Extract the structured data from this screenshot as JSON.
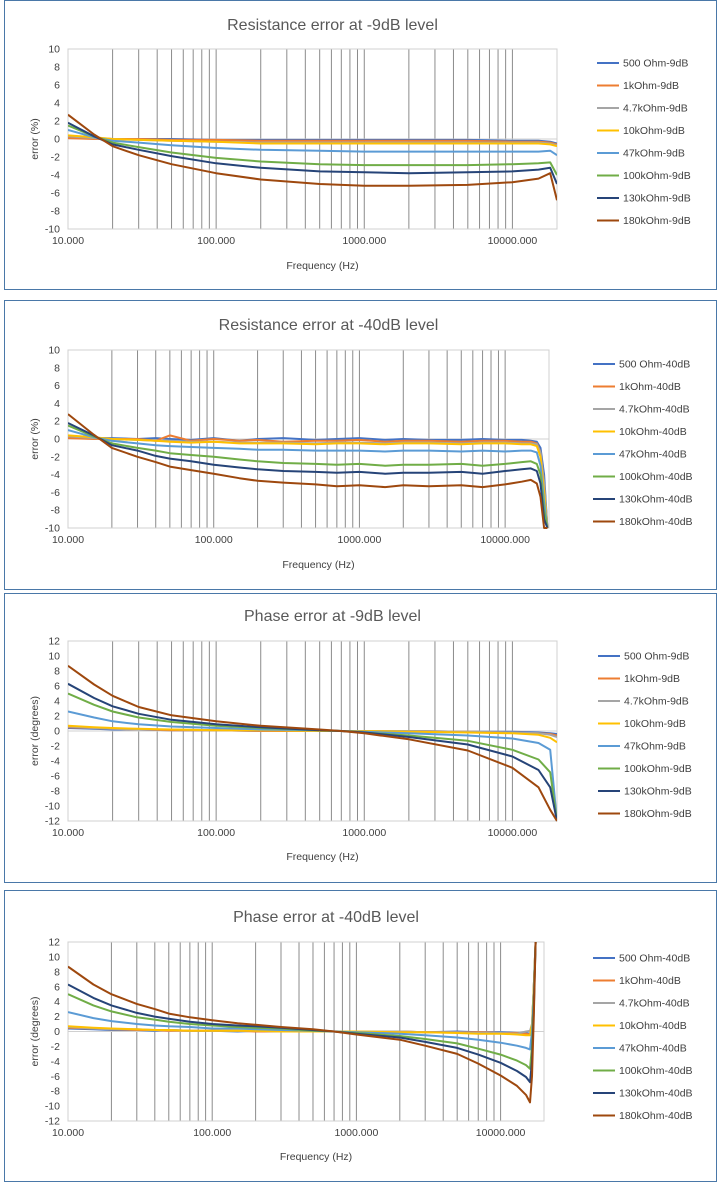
{
  "colors": {
    "500 Ohm": "#4472c4",
    "1kOhm": "#ed7d31",
    "4.7kOhm": "#a5a5a5",
    "10kOhm": "#ffc000",
    "47kOhm": "#5b9bd5",
    "100kOhm": "#70ad47",
    "130kOhm": "#264478",
    "180kOhm": "#9e480e"
  },
  "chart_data": [
    {
      "type": "line",
      "title": "Resistance error at -9dB level",
      "xlabel": "Frequency (Hz)",
      "ylabel": "error (%)",
      "x_scale": "log",
      "xlim": [
        10,
        20000
      ],
      "ylim": [
        -10,
        10
      ],
      "y_ticks": [
        10,
        8,
        6,
        4,
        2,
        0,
        -2,
        -4,
        -6,
        -8,
        -10
      ],
      "x_ticks": [
        "10.000",
        "100.000",
        "1000.000",
        "10000.000"
      ],
      "grid": "vertical",
      "legend": "right",
      "x": [
        10,
        15,
        20,
        30,
        50,
        100,
        200,
        500,
        1000,
        2000,
        5000,
        10000,
        15000,
        18000,
        20000
      ],
      "series": [
        {
          "name": "500 Ohm-9dB",
          "values": [
            0.2,
            0.1,
            0.0,
            0.0,
            0.0,
            -0.1,
            -0.1,
            -0.1,
            -0.1,
            -0.1,
            -0.1,
            -0.2,
            -0.2,
            -0.3,
            -0.5
          ]
        },
        {
          "name": "1kOhm-9dB",
          "values": [
            0.1,
            0.0,
            0.0,
            0.0,
            -0.1,
            -0.1,
            -0.2,
            -0.2,
            -0.2,
            -0.2,
            -0.2,
            -0.3,
            -0.3,
            -0.4,
            -0.6
          ]
        },
        {
          "name": "4.7kOhm-9dB",
          "values": [
            0.3,
            0.1,
            0.0,
            -0.1,
            -0.2,
            -0.3,
            -0.4,
            -0.4,
            -0.4,
            -0.4,
            -0.4,
            -0.4,
            -0.4,
            -0.5,
            -0.7
          ]
        },
        {
          "name": "10kOhm-9dB",
          "values": [
            0.4,
            0.2,
            0.0,
            -0.1,
            -0.2,
            -0.3,
            -0.5,
            -0.5,
            -0.5,
            -0.5,
            -0.5,
            -0.5,
            -0.5,
            -0.6,
            -0.8
          ]
        },
        {
          "name": "47kOhm-9dB",
          "values": [
            1.0,
            0.2,
            -0.2,
            -0.4,
            -0.7,
            -1.0,
            -1.2,
            -1.3,
            -1.4,
            -1.4,
            -1.4,
            -1.4,
            -1.4,
            -1.3,
            -1.8
          ]
        },
        {
          "name": "100kOhm-9dB",
          "values": [
            1.5,
            0.3,
            -0.4,
            -0.9,
            -1.5,
            -2.1,
            -2.5,
            -2.8,
            -2.9,
            -2.9,
            -2.9,
            -2.8,
            -2.7,
            -2.6,
            -4.0
          ]
        },
        {
          "name": "130kOhm-9dB",
          "values": [
            1.8,
            0.3,
            -0.6,
            -1.2,
            -1.9,
            -2.7,
            -3.2,
            -3.6,
            -3.7,
            -3.8,
            -3.7,
            -3.6,
            -3.4,
            -3.2,
            -5.0
          ]
        },
        {
          "name": "180kOhm-9dB",
          "values": [
            2.7,
            0.5,
            -0.8,
            -1.8,
            -2.8,
            -3.8,
            -4.5,
            -5.0,
            -5.2,
            -5.2,
            -5.1,
            -4.8,
            -4.4,
            -3.8,
            -6.8
          ]
        }
      ]
    },
    {
      "type": "line",
      "title": "Resistance error at -40dB level",
      "xlabel": "Frequency (Hz)",
      "ylabel": "error (%)",
      "x_scale": "log",
      "xlim": [
        10,
        20000
      ],
      "ylim": [
        -10,
        10
      ],
      "y_ticks": [
        10,
        8,
        6,
        4,
        2,
        0,
        -2,
        -4,
        -6,
        -8,
        -10
      ],
      "x_ticks": [
        "10.000",
        "100.000",
        "1000.000",
        "10000.000"
      ],
      "grid": "vertical",
      "legend": "right",
      "x": [
        10,
        15,
        20,
        30,
        40,
        50,
        70,
        100,
        150,
        200,
        300,
        500,
        700,
        1000,
        1500,
        2000,
        3000,
        5000,
        7000,
        10000,
        13000,
        15000,
        16500,
        17500,
        18500,
        19500
      ],
      "series": [
        {
          "name": "500 Ohm-40dB",
          "values": [
            0.3,
            0.1,
            0.1,
            0.0,
            0.1,
            0.0,
            -0.1,
            0.1,
            -0.2,
            0.0,
            0.1,
            -0.1,
            0.0,
            0.1,
            -0.1,
            0.0,
            -0.1,
            -0.1,
            0.0,
            -0.1,
            -0.1,
            -0.2,
            -0.3,
            -1.0,
            -4.0,
            -10.0
          ]
        },
        {
          "name": "1kOhm-40dB",
          "values": [
            0.1,
            0.0,
            0.0,
            0.0,
            -0.2,
            0.4,
            -0.2,
            0.0,
            -0.2,
            -0.1,
            -0.3,
            -0.2,
            -0.2,
            -0.1,
            -0.3,
            -0.2,
            -0.2,
            -0.3,
            -0.2,
            -0.2,
            -0.3,
            -0.3,
            -0.5,
            -1.5,
            -5.0,
            -10.0
          ]
        },
        {
          "name": "4.7kOhm-40dB",
          "values": [
            0.3,
            0.1,
            0.0,
            -0.1,
            -0.2,
            -0.2,
            -0.3,
            -0.3,
            -0.4,
            -0.4,
            -0.4,
            -0.5,
            -0.4,
            -0.4,
            -0.5,
            -0.4,
            -0.4,
            -0.5,
            -0.4,
            -0.4,
            -0.5,
            -0.5,
            -0.6,
            -1.5,
            -5.0,
            -10.0
          ]
        },
        {
          "name": "10kOhm-40dB",
          "values": [
            0.4,
            0.2,
            0.0,
            -0.1,
            -0.2,
            -0.3,
            -0.4,
            -0.3,
            -0.5,
            -0.5,
            -0.5,
            -0.6,
            -0.5,
            -0.5,
            -0.6,
            -0.5,
            -0.5,
            -0.6,
            -0.5,
            -0.5,
            -0.6,
            -0.6,
            -0.8,
            -2.0,
            -6.0,
            -10.0
          ]
        },
        {
          "name": "47kOhm-40dB",
          "values": [
            1.0,
            0.2,
            -0.2,
            -0.5,
            -0.7,
            -0.8,
            -0.9,
            -1.0,
            -1.1,
            -1.2,
            -1.2,
            -1.3,
            -1.3,
            -1.3,
            -1.4,
            -1.3,
            -1.3,
            -1.4,
            -1.3,
            -1.4,
            -1.3,
            -1.3,
            -1.5,
            -3.0,
            -7.0,
            -10.0
          ]
        },
        {
          "name": "100kOhm-40dB",
          "values": [
            1.5,
            0.3,
            -0.5,
            -1.0,
            -1.3,
            -1.6,
            -1.8,
            -2.0,
            -2.3,
            -2.5,
            -2.7,
            -2.8,
            -2.9,
            -2.8,
            -3.0,
            -2.9,
            -2.9,
            -2.8,
            -3.0,
            -2.8,
            -2.6,
            -2.5,
            -2.8,
            -4.0,
            -8.0,
            -10.0
          ]
        },
        {
          "name": "130kOhm-40dB",
          "values": [
            1.8,
            0.4,
            -0.7,
            -1.3,
            -1.9,
            -2.2,
            -2.5,
            -2.9,
            -3.2,
            -3.4,
            -3.6,
            -3.7,
            -3.8,
            -3.7,
            -3.9,
            -3.8,
            -3.8,
            -3.7,
            -3.9,
            -3.6,
            -3.4,
            -3.3,
            -3.6,
            -5.0,
            -9.0,
            -10.0
          ]
        },
        {
          "name": "180kOhm-40dB",
          "values": [
            2.8,
            0.5,
            -1.0,
            -2.0,
            -2.6,
            -3.1,
            -3.5,
            -3.9,
            -4.4,
            -4.7,
            -4.9,
            -5.1,
            -5.3,
            -5.2,
            -5.4,
            -5.2,
            -5.3,
            -5.2,
            -5.4,
            -5.1,
            -4.8,
            -4.6,
            -5.0,
            -6.5,
            -10.0,
            -10.0
          ]
        }
      ]
    },
    {
      "type": "line",
      "title": "Phase error at -9dB level",
      "xlabel": "Frequency (Hz)",
      "ylabel": "error (degrees)",
      "x_scale": "log",
      "xlim": [
        10,
        20000
      ],
      "ylim": [
        -12,
        12
      ],
      "y_ticks": [
        12,
        10,
        8,
        6,
        4,
        2,
        0,
        -2,
        -4,
        -6,
        -8,
        -10,
        -12
      ],
      "x_ticks": [
        "10.000",
        "100.000",
        "1000.000",
        "10000.000"
      ],
      "grid": "vertical",
      "legend": "right",
      "x": [
        10,
        15,
        20,
        30,
        50,
        100,
        200,
        500,
        700,
        1000,
        2000,
        5000,
        10000,
        15000,
        18000,
        20000
      ],
      "series": [
        {
          "name": "500 Ohm-9dB",
          "values": [
            0.4,
            0.3,
            0.2,
            0.2,
            0.1,
            0.1,
            0.0,
            0.0,
            0.0,
            0.0,
            0.0,
            -0.1,
            -0.1,
            -0.2,
            -0.3,
            -0.4
          ]
        },
        {
          "name": "1kOhm-9dB",
          "values": [
            0.5,
            0.4,
            0.3,
            0.2,
            0.1,
            0.1,
            0.0,
            0.0,
            0.0,
            0.0,
            0.0,
            -0.1,
            -0.2,
            -0.3,
            -0.4,
            -0.6
          ]
        },
        {
          "name": "4.7kOhm-9dB",
          "values": [
            0.6,
            0.4,
            0.3,
            0.2,
            0.2,
            0.1,
            0.1,
            0.0,
            0.0,
            0.0,
            0.0,
            -0.1,
            -0.2,
            -0.3,
            -0.5,
            -0.8
          ]
        },
        {
          "name": "10kOhm-9dB",
          "values": [
            0.7,
            0.5,
            0.4,
            0.3,
            0.2,
            0.1,
            0.1,
            0.0,
            0.0,
            0.0,
            -0.1,
            -0.2,
            -0.3,
            -0.5,
            -0.9,
            -1.5
          ]
        },
        {
          "name": "47kOhm-9dB",
          "values": [
            2.6,
            1.8,
            1.3,
            0.9,
            0.6,
            0.4,
            0.2,
            0.1,
            0.0,
            -0.1,
            -0.3,
            -0.6,
            -1.0,
            -1.6,
            -2.5,
            -12.0
          ]
        },
        {
          "name": "100kOhm-9dB",
          "values": [
            5.0,
            3.5,
            2.6,
            1.8,
            1.2,
            0.7,
            0.4,
            0.1,
            0.0,
            -0.2,
            -0.6,
            -1.3,
            -2.5,
            -3.8,
            -5.5,
            -12.0
          ]
        },
        {
          "name": "130kOhm-9dB",
          "values": [
            6.3,
            4.4,
            3.3,
            2.3,
            1.5,
            0.9,
            0.5,
            0.1,
            0.0,
            -0.2,
            -0.8,
            -1.8,
            -3.4,
            -5.2,
            -7.5,
            -12.0
          ]
        },
        {
          "name": "180kOhm-9dB",
          "values": [
            8.7,
            6.2,
            4.7,
            3.2,
            2.1,
            1.3,
            0.7,
            0.2,
            0.0,
            -0.3,
            -1.1,
            -2.6,
            -4.9,
            -7.5,
            -10.5,
            -12.0
          ]
        }
      ]
    },
    {
      "type": "line",
      "title": "Phase error at -40dB level",
      "xlabel": "Frequency (Hz)",
      "ylabel": "error (degrees)",
      "x_scale": "log",
      "xlim": [
        10,
        20000
      ],
      "ylim": [
        -12,
        12
      ],
      "y_ticks": [
        12,
        10,
        8,
        6,
        4,
        2,
        0,
        -2,
        -4,
        -6,
        -8,
        -10,
        -12
      ],
      "x_ticks": [
        "10.000",
        "100.000",
        "1000.000",
        "10000.000"
      ],
      "grid": "vertical",
      "legend": "right",
      "x": [
        10,
        15,
        20,
        30,
        40,
        50,
        70,
        100,
        150,
        200,
        300,
        500,
        700,
        1000,
        2000,
        3000,
        5000,
        7000,
        10000,
        13000,
        15000,
        16000,
        16500,
        17000,
        17500
      ],
      "series": [
        {
          "name": "500 Ohm-40dB",
          "values": [
            0.4,
            0.3,
            0.2,
            0.2,
            0.1,
            0.2,
            0.1,
            0.1,
            0.0,
            0.1,
            0.0,
            0.0,
            0.0,
            0.0,
            0.0,
            -0.1,
            0.0,
            -0.1,
            -0.1,
            -0.2,
            -0.2,
            -0.3,
            0.5,
            6.0,
            12.0
          ]
        },
        {
          "name": "1kOhm-40dB",
          "values": [
            0.5,
            0.4,
            0.3,
            0.2,
            0.2,
            0.1,
            0.1,
            0.1,
            0.1,
            0.0,
            0.0,
            0.0,
            0.0,
            0.0,
            0.0,
            -0.1,
            -0.1,
            -0.1,
            -0.2,
            -0.2,
            -0.3,
            -0.4,
            0.5,
            6.0,
            12.0
          ]
        },
        {
          "name": "4.7kOhm-40dB",
          "values": [
            0.6,
            0.4,
            0.3,
            0.3,
            0.2,
            0.2,
            0.1,
            0.1,
            0.1,
            0.1,
            0.0,
            0.0,
            0.0,
            0.0,
            0.0,
            -0.1,
            -0.1,
            -0.2,
            -0.2,
            -0.3,
            0.0,
            0.1,
            1.0,
            6.0,
            12.0
          ]
        },
        {
          "name": "10kOhm-40dB",
          "values": [
            0.7,
            0.5,
            0.4,
            0.3,
            0.2,
            0.2,
            0.1,
            0.1,
            0.1,
            0.1,
            0.0,
            0.0,
            0.0,
            0.0,
            -0.1,
            -0.1,
            -0.2,
            -0.3,
            -0.3,
            -0.4,
            -0.5,
            -0.5,
            1.0,
            6.0,
            12.0
          ]
        },
        {
          "name": "47kOhm-40dB",
          "values": [
            2.6,
            1.8,
            1.4,
            1.0,
            0.8,
            0.7,
            0.6,
            0.4,
            0.4,
            0.3,
            0.2,
            0.1,
            0.0,
            -0.1,
            -0.3,
            -0.5,
            -0.8,
            -1.1,
            -1.5,
            -1.9,
            -2.2,
            -2.4,
            0.0,
            5.0,
            12.0
          ]
        },
        {
          "name": "100kOhm-40dB",
          "values": [
            5.0,
            3.5,
            2.7,
            1.9,
            1.6,
            1.3,
            1.0,
            0.8,
            0.6,
            0.5,
            0.4,
            0.1,
            0.0,
            -0.2,
            -0.6,
            -1.0,
            -1.6,
            -2.3,
            -3.1,
            -3.9,
            -4.5,
            -5.0,
            -2.0,
            4.0,
            12.0
          ]
        },
        {
          "name": "130kOhm-40dB",
          "values": [
            6.3,
            4.5,
            3.5,
            2.5,
            2.0,
            1.7,
            1.3,
            1.0,
            0.8,
            0.7,
            0.5,
            0.2,
            0.0,
            -0.3,
            -0.8,
            -1.4,
            -2.2,
            -3.1,
            -4.2,
            -5.3,
            -6.1,
            -6.8,
            -4.0,
            3.0,
            12.0
          ]
        },
        {
          "name": "180kOhm-40dB",
          "values": [
            8.7,
            6.3,
            5.0,
            3.7,
            3.0,
            2.4,
            1.9,
            1.5,
            1.1,
            0.9,
            0.6,
            0.3,
            0.0,
            -0.4,
            -1.1,
            -1.9,
            -3.0,
            -4.3,
            -5.9,
            -7.3,
            -8.5,
            -9.5,
            -6.0,
            2.0,
            12.0
          ]
        }
      ]
    }
  ]
}
